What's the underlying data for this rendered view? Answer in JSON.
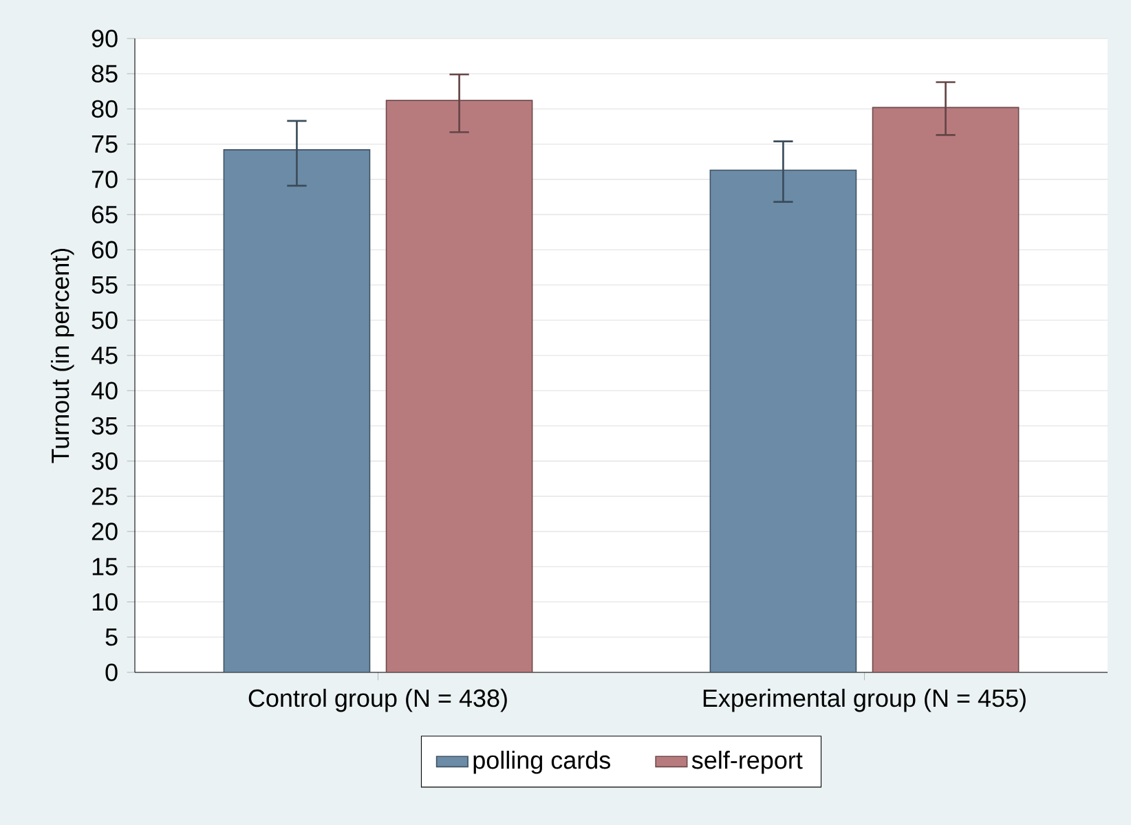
{
  "chart_data": {
    "type": "bar",
    "ylabel": "Turnout (in percent)",
    "categories": [
      "Control group (N = 438)",
      "Experimental group (N = 455)"
    ],
    "series": [
      {
        "name": "polling cards",
        "color": "#6b8ba6",
        "values": [
          74.2,
          71.3
        ],
        "errors": [
          [
            69.1,
            78.3
          ],
          [
            66.8,
            75.4
          ]
        ]
      },
      {
        "name": "self-report",
        "color": "#b77b7e",
        "values": [
          81.2,
          80.2
        ],
        "errors": [
          [
            76.7,
            84.9
          ],
          [
            76.3,
            83.8
          ]
        ]
      }
    ],
    "ylim": [
      0,
      90
    ],
    "yticks": [
      0,
      5,
      10,
      15,
      20,
      25,
      30,
      35,
      40,
      45,
      50,
      55,
      60,
      65,
      70,
      75,
      80,
      85,
      90
    ],
    "grid": "y",
    "legend": "bottom"
  }
}
